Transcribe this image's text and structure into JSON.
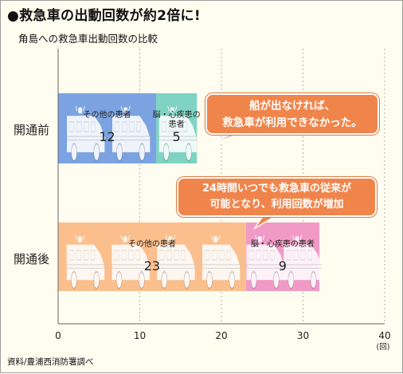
{
  "title": "●救急車の出動回数が約2倍に!",
  "subtitle": "角島への救急車出動回数の比較",
  "source": "資料/豊浦西消防署調べ",
  "callouts": [
    {
      "lines": [
        "船が出なければ、",
        "救急車が利用できなかった。"
      ]
    },
    {
      "lines": [
        "24時間いつでも救急車の従来が",
        "可能となり、利用回数が増加"
      ]
    }
  ],
  "chart_data": {
    "type": "bar",
    "orientation": "horizontal",
    "stacked": true,
    "categories": [
      "開通前",
      "開通後"
    ],
    "series": [
      {
        "values": [
          12,
          23
        ],
        "labels": [
          "その他の患者",
          "その他の患者"
        ],
        "color": "#7ba3e2"
      },
      {
        "values": [
          5,
          9
        ],
        "labels": [
          "脳・心疾患の患者",
          "脳・心疾患の患者"
        ],
        "color": "#f29ac6"
      }
    ],
    "segment_colors": [
      [
        "#7ba3e2",
        "#7ed3c2"
      ],
      [
        "#fbbf8d",
        "#f29ac6"
      ]
    ],
    "xlim": [
      0,
      40
    ],
    "xticks": [
      0,
      10,
      20,
      30,
      40
    ],
    "xunit": "(回)",
    "xgrid": true
  }
}
